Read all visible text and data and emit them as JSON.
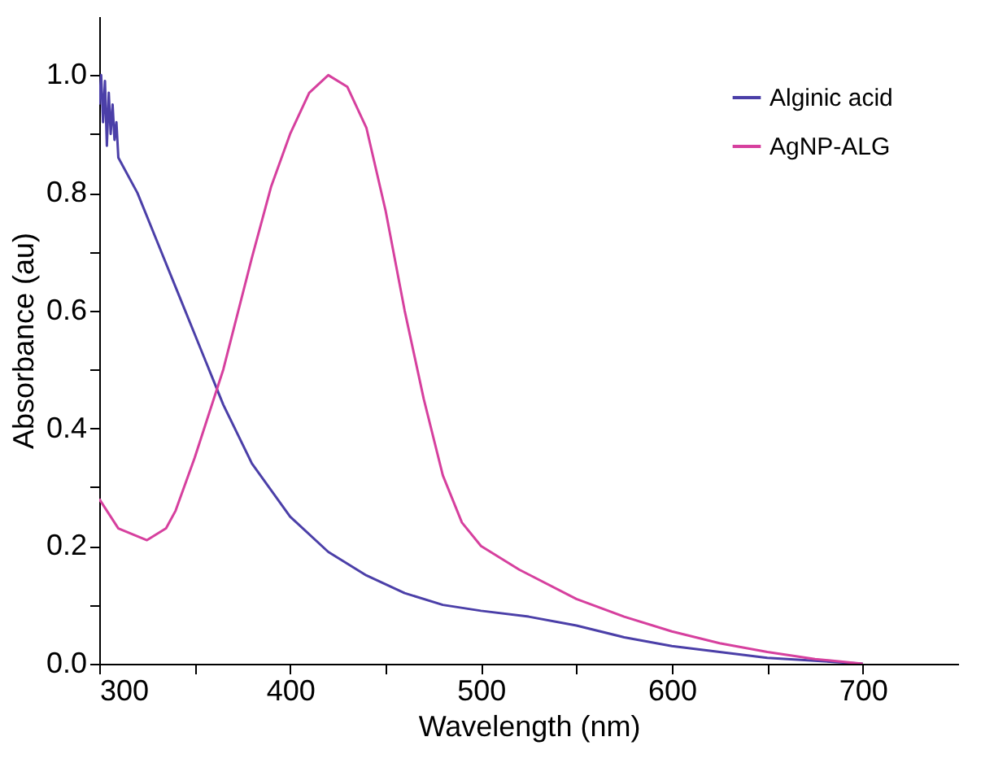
{
  "chart_data": {
    "type": "line",
    "xlabel": "Wavelength (nm)",
    "ylabel": "Absorbance (au)",
    "xlim": [
      300,
      750
    ],
    "xticks": [
      300,
      {
        "value": 350,
        "label": null
      },
      400,
      {
        "value": 450,
        "label": null
      },
      500,
      {
        "value": 550,
        "label": null
      },
      600,
      {
        "value": 650,
        "label": null
      },
      700
    ],
    "ylim": [
      0,
      1.1
    ],
    "yticks": [
      {
        "value": 0,
        "label": "0.0"
      },
      {
        "value": 0.1,
        "label": null
      },
      0.2,
      {
        "value": 0.3,
        "label": null
      },
      0.4,
      {
        "value": 0.5,
        "label": null
      },
      0.6,
      {
        "value": 0.7,
        "label": null
      },
      0.8,
      {
        "value": 0.9,
        "label": null
      },
      {
        "value": 1.0,
        "label": "1.0"
      }
    ],
    "grid": false,
    "legend": "top right",
    "line_style": "solid",
    "marker": "none",
    "series": [
      {
        "name": "Alginic acid",
        "color": "#4b3fa8",
        "x": [
          300,
          301,
          302,
          303,
          304,
          305,
          306,
          307,
          308,
          309,
          310,
          320,
          330,
          340,
          350,
          360,
          365,
          380,
          400,
          420,
          440,
          460,
          480,
          500,
          525,
          550,
          575,
          600,
          650,
          700
        ],
        "values": [
          0.95,
          1.0,
          0.92,
          0.99,
          0.88,
          0.97,
          0.9,
          0.95,
          0.89,
          0.92,
          0.86,
          0.8,
          0.72,
          0.64,
          0.56,
          0.48,
          0.44,
          0.34,
          0.25,
          0.19,
          0.15,
          0.12,
          0.1,
          0.09,
          0.08,
          0.065,
          0.045,
          0.03,
          0.01,
          0.0
        ]
      },
      {
        "name": "AgNP-ALG",
        "color": "#d6409e",
        "x": [
          300,
          310,
          325,
          335,
          340,
          350,
          365,
          380,
          390,
          400,
          410,
          420,
          430,
          440,
          450,
          460,
          470,
          480,
          490,
          500,
          520,
          550,
          575,
          600,
          625,
          650,
          675,
          700
        ],
        "values": [
          0.28,
          0.23,
          0.21,
          0.23,
          0.26,
          0.35,
          0.5,
          0.69,
          0.81,
          0.9,
          0.97,
          1.0,
          0.98,
          0.91,
          0.77,
          0.6,
          0.45,
          0.32,
          0.24,
          0.2,
          0.16,
          0.11,
          0.08,
          0.055,
          0.035,
          0.02,
          0.008,
          0.0
        ]
      }
    ]
  }
}
